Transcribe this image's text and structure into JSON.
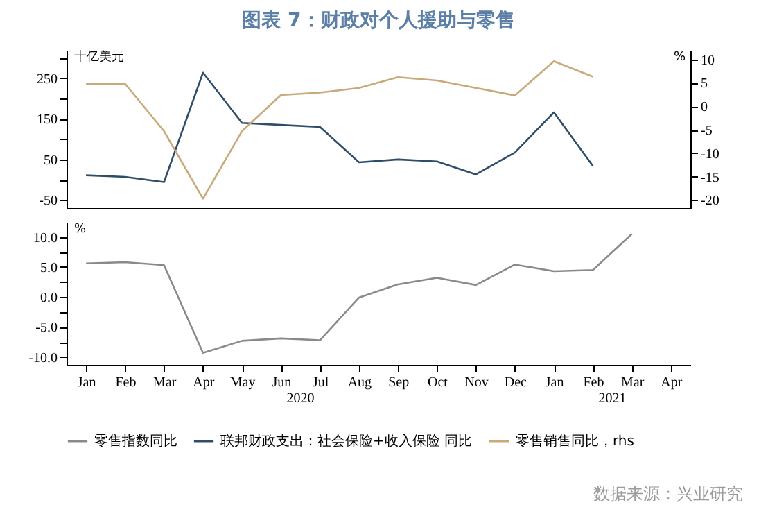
{
  "chart_data": [
    {
      "type": "line",
      "title": "图表 7：财政对个人援助与零售",
      "ylabel": "十亿美元",
      "y2label": "%",
      "categories": [
        null,
        null,
        null,
        null,
        null,
        null,
        null,
        null,
        null,
        null,
        null,
        null,
        null,
        null,
        null,
        null
      ],
      "series": [
        {
          "name": "联邦财政支出：社会保险+收入保险 同比",
          "color": "#2e4d69",
          "values": [
            11,
            7,
            -6,
            264,
            140,
            135,
            130,
            43,
            50,
            45,
            13,
            67,
            166,
            34,
            null,
            null
          ]
        },
        {
          "name": "零售销售同比，rhs",
          "color": "#c9a97a",
          "axis": "y2",
          "values": [
            4.8,
            4.8,
            -5.3,
            -19.7,
            -5.3,
            2.4,
            2.9,
            3.9,
            6.2,
            5.5,
            3.9,
            2.3,
            9.6,
            6.3,
            null,
            null
          ]
        }
      ],
      "ylim": [
        -70,
        320
      ],
      "yticks": [
        -50,
        {
          "value": 0,
          "label": null
        },
        50,
        {
          "value": 100,
          "label": null
        },
        150,
        {
          "value": 200,
          "label": null
        },
        250,
        {
          "value": 300,
          "label": null
        }
      ],
      "y2lim": [
        -21.7,
        12
      ],
      "y2ticks": [
        -20,
        -15,
        -10,
        -5,
        0,
        5,
        10
      ],
      "tick_labels": "y",
      "legend": "bottom",
      "grid": false
    },
    {
      "type": "line",
      "ylabel": "%",
      "categories": [
        "Jan",
        "Feb",
        "Mar",
        "Apr",
        "May",
        "Jun",
        "Jul",
        "Aug",
        "Sep",
        "Oct",
        "Nov",
        "Dec",
        "Jan",
        "Feb",
        "Mar",
        "Apr"
      ],
      "series": [
        {
          "name": "零售指数同比",
          "color": "#8a8a8a",
          "values": [
            5.6,
            5.8,
            5.3,
            -9.3,
            -7.3,
            -6.9,
            -7.2,
            -0.1,
            2.1,
            3.2,
            2.0,
            5.4,
            4.3,
            4.5,
            10.5,
            null
          ]
        }
      ],
      "ylim": [
        -11.3,
        12.5
      ],
      "yticks": [
        {
          "value": -10,
          "label": "-10.0"
        },
        {
          "value": -7.5,
          "label": null
        },
        {
          "value": -5,
          "label": "-5.0"
        },
        {
          "value": -2.5,
          "label": null
        },
        {
          "value": 0,
          "label": "0.0"
        },
        {
          "value": 2.5,
          "label": null
        },
        {
          "value": 5,
          "label": "5.0"
        },
        {
          "value": 7.5,
          "label": null
        },
        {
          "value": 10,
          "label": "10.0"
        }
      ],
      "annotations": [
        "2020",
        "2021",
        "数据来源：兴业研究"
      ],
      "legend": "bottom",
      "grid": false
    }
  ]
}
